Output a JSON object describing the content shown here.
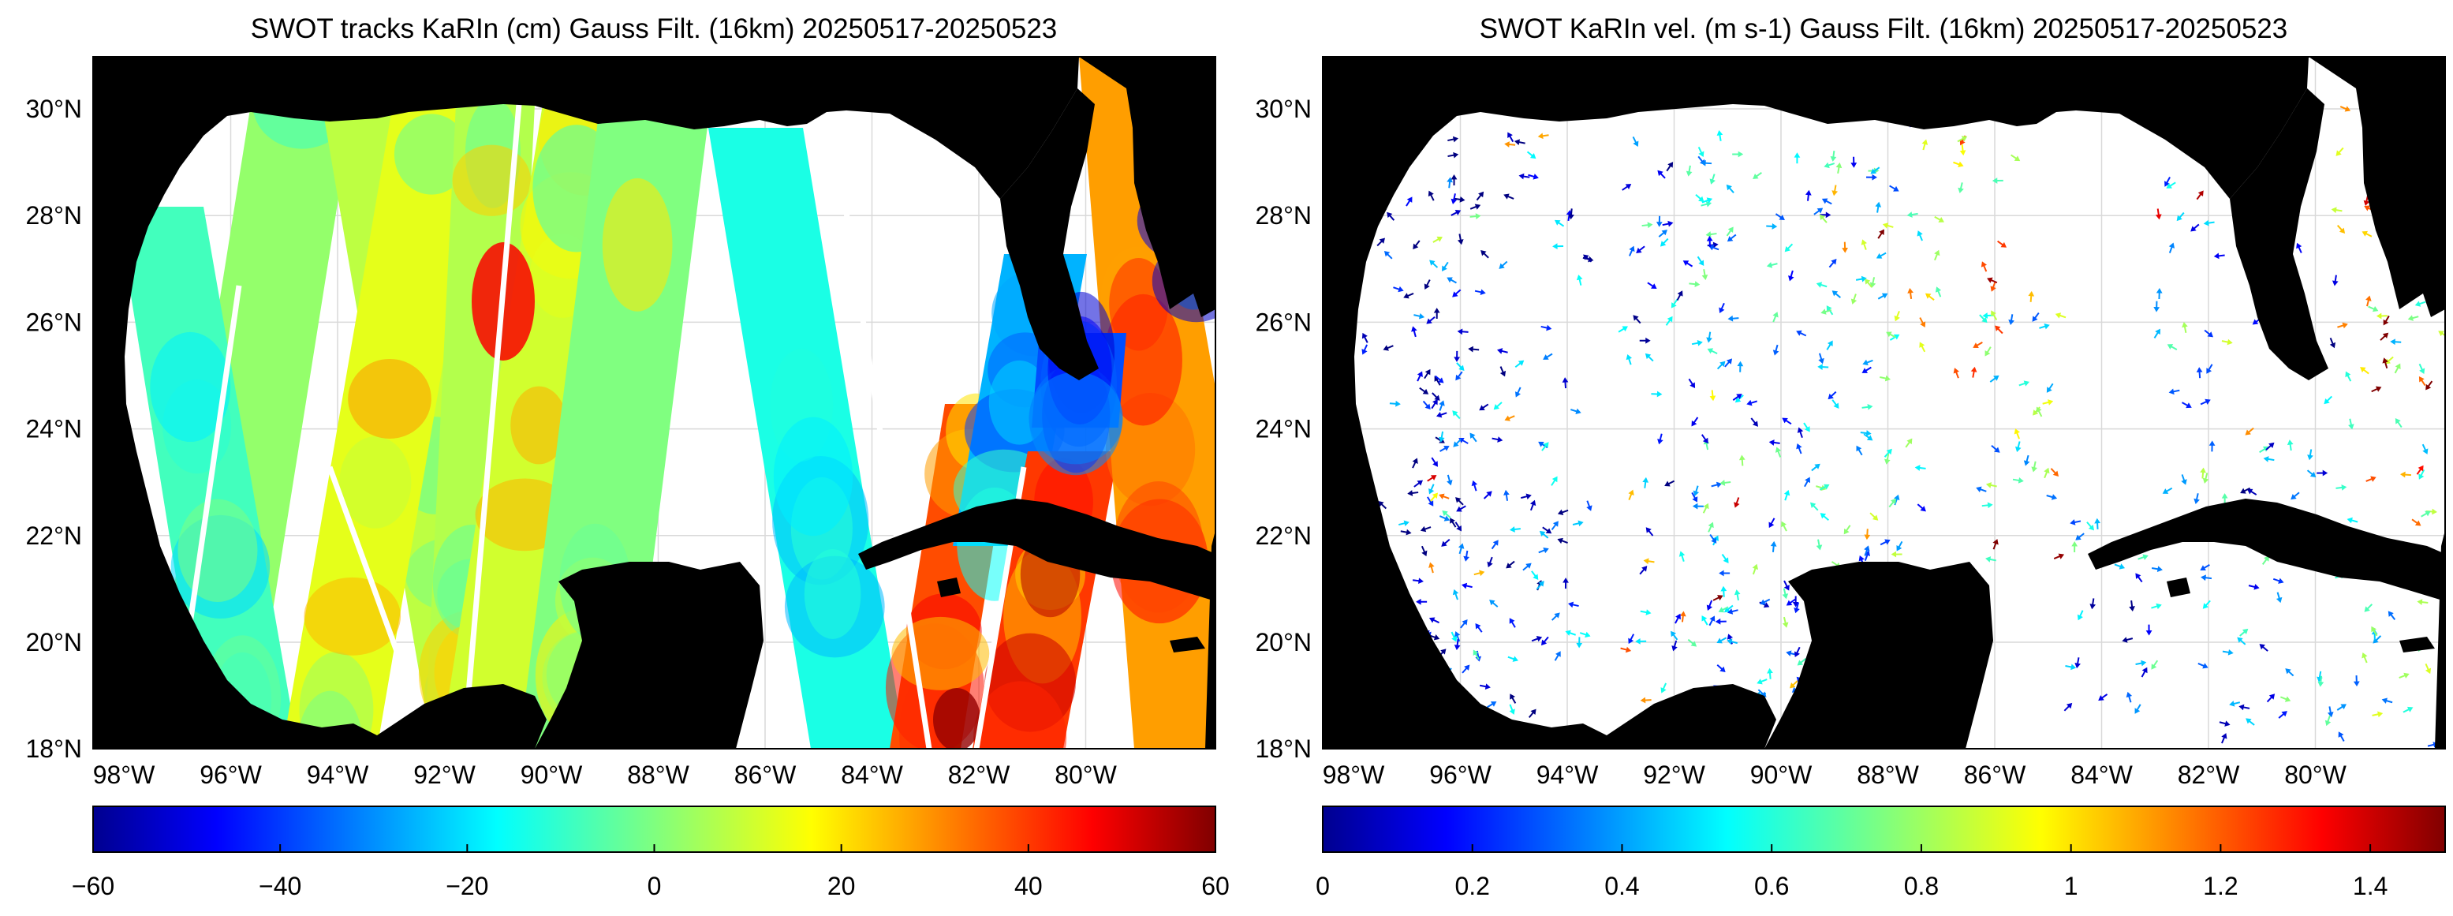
{
  "panels": [
    {
      "id": "ssh",
      "title": "SWOT tracks KaRIn (cm) Gauss Filt. (16km) 20250517-20250523",
      "lon_ticks": [
        "98°W",
        "96°W",
        "94°W",
        "92°W",
        "90°W",
        "88°W",
        "86°W",
        "84°W",
        "82°W",
        "80°W"
      ],
      "lat_ticks": [
        "30°N",
        "28°N",
        "26°N",
        "24°N",
        "22°N",
        "20°N",
        "18°N"
      ],
      "colorbar": {
        "colormap": "jet",
        "ticks": [
          "−60",
          "−40",
          "−20",
          "0",
          "20",
          "40",
          "60"
        ]
      }
    },
    {
      "id": "vel",
      "title": "SWOT KaRIn vel. (m s-1) Gauss Filt. (16km) 20250517-20250523",
      "lon_ticks": [
        "98°W",
        "96°W",
        "94°W",
        "92°W",
        "90°W",
        "88°W",
        "86°W",
        "84°W",
        "82°W",
        "80°W"
      ],
      "lat_ticks": [
        "30°N",
        "28°N",
        "26°N",
        "24°N",
        "22°N",
        "20°N",
        "18°N"
      ],
      "colorbar": {
        "colormap": "jet",
        "ticks": [
          "0",
          "0.2",
          "0.4",
          "0.6",
          "0.8",
          "1",
          "1.2",
          "1.4"
        ]
      }
    }
  ],
  "colors": {
    "land": "#000000",
    "ocean": "#ffffff",
    "grid": "#d9d9d9"
  }
}
